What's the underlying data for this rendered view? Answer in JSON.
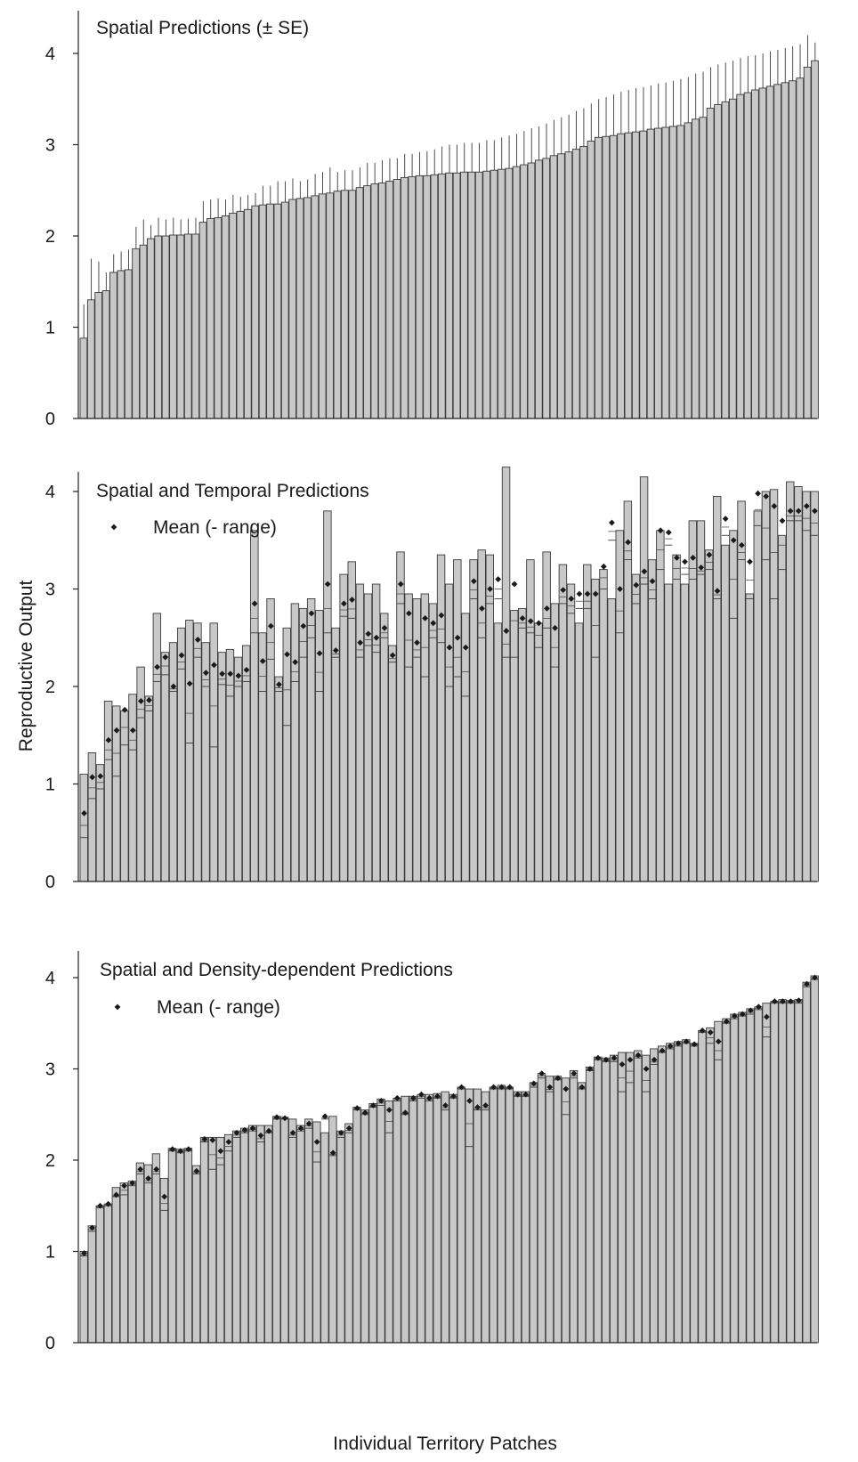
{
  "ylabel": "Reproductive Output",
  "xlabel": "Individual Territory Patches",
  "colors": {
    "bar_fill": "#c8c8c8",
    "bar_stroke": "#3a3a3a",
    "axis": "#222222",
    "marker": "#1a1a1a"
  },
  "chart_data": [
    {
      "type": "bar",
      "title": "Spatial Predictions (± SE)",
      "legend": null,
      "ylim": [
        0,
        4.3
      ],
      "yticks": [
        0,
        1,
        2,
        3,
        4
      ],
      "values": [
        0.88,
        1.3,
        1.38,
        1.4,
        1.6,
        1.62,
        1.63,
        1.86,
        1.9,
        1.97,
        2.0,
        2.0,
        2.01,
        2.01,
        2.02,
        2.02,
        2.15,
        2.19,
        2.2,
        2.22,
        2.25,
        2.27,
        2.29,
        2.33,
        2.34,
        2.35,
        2.35,
        2.37,
        2.4,
        2.41,
        2.42,
        2.44,
        2.46,
        2.47,
        2.49,
        2.5,
        2.5,
        2.53,
        2.55,
        2.57,
        2.58,
        2.6,
        2.62,
        2.64,
        2.65,
        2.66,
        2.66,
        2.67,
        2.68,
        2.69,
        2.69,
        2.7,
        2.7,
        2.7,
        2.71,
        2.72,
        2.73,
        2.74,
        2.76,
        2.78,
        2.8,
        2.83,
        2.85,
        2.88,
        2.9,
        2.92,
        2.95,
        2.98,
        3.04,
        3.08,
        3.09,
        3.1,
        3.12,
        3.13,
        3.14,
        3.15,
        3.17,
        3.18,
        3.19,
        3.2,
        3.21,
        3.24,
        3.28,
        3.3,
        3.4,
        3.44,
        3.47,
        3.5,
        3.55,
        3.57,
        3.6,
        3.62,
        3.64,
        3.66,
        3.68,
        3.7,
        3.73,
        3.85,
        3.92
      ],
      "upper": [
        1.25,
        1.75,
        1.72,
        1.6,
        1.8,
        1.83,
        1.85,
        2.1,
        2.18,
        2.12,
        2.2,
        2.18,
        2.2,
        2.18,
        2.19,
        2.2,
        2.38,
        2.4,
        2.41,
        2.4,
        2.45,
        2.43,
        2.45,
        2.47,
        2.55,
        2.55,
        2.6,
        2.6,
        2.63,
        2.6,
        2.62,
        2.68,
        2.7,
        2.75,
        2.7,
        2.72,
        2.72,
        2.75,
        2.8,
        2.8,
        2.83,
        2.85,
        2.85,
        2.9,
        2.9,
        2.92,
        2.93,
        2.95,
        2.98,
        3.0,
        3.0,
        3.02,
        3.02,
        3.02,
        3.05,
        3.05,
        3.08,
        3.1,
        3.12,
        3.15,
        3.18,
        3.2,
        3.23,
        3.27,
        3.3,
        3.33,
        3.37,
        3.4,
        3.45,
        3.5,
        3.52,
        3.55,
        3.58,
        3.6,
        3.62,
        3.63,
        3.65,
        3.67,
        3.68,
        3.7,
        3.72,
        3.74,
        3.78,
        3.8,
        3.85,
        3.88,
        3.9,
        3.92,
        3.95,
        3.97,
        3.98,
        4.0,
        4.02,
        4.04,
        4.06,
        4.08,
        4.1,
        4.2,
        4.12
      ]
    },
    {
      "type": "bar",
      "title": "Spatial and Temporal Predictions",
      "legend": "Mean (- range)",
      "ylim": [
        0,
        4.3
      ],
      "yticks": [
        0,
        1,
        2,
        3,
        4
      ],
      "values": [
        1.1,
        1.32,
        1.2,
        1.85,
        1.8,
        1.75,
        1.92,
        2.2,
        1.9,
        2.75,
        2.35,
        2.45,
        2.6,
        2.68,
        2.65,
        2.45,
        2.65,
        2.35,
        2.38,
        2.3,
        2.42,
        3.6,
        2.55,
        2.9,
        2.1,
        2.6,
        2.85,
        2.8,
        2.9,
        2.78,
        3.8,
        2.6,
        3.15,
        3.28,
        3.05,
        2.95,
        3.05,
        2.75,
        2.42,
        3.38,
        2.95,
        2.9,
        2.95,
        2.85,
        3.35,
        3.05,
        3.3,
        2.75,
        3.3,
        3.4,
        3.35,
        2.65,
        4.25,
        2.78,
        2.8,
        3.3,
        2.65,
        3.38,
        2.85,
        3.25,
        3.05,
        2.65,
        3.25,
        3.1,
        3.2,
        2.9,
        3.6,
        3.9,
        3.15,
        4.15,
        3.3,
        3.6,
        3.05,
        3.35,
        3.05,
        3.7,
        3.7,
        3.4,
        3.95,
        3.45,
        3.6,
        3.9,
        2.95,
        3.8,
        4.0,
        4.02,
        3.55,
        4.1,
        4.05,
        4.0,
        4.0
      ],
      "means": [
        0.7,
        1.07,
        1.08,
        1.45,
        1.55,
        1.76,
        1.55,
        1.85,
        1.86,
        2.2,
        2.3,
        2.0,
        2.32,
        2.03,
        2.48,
        2.14,
        2.22,
        2.13,
        2.13,
        2.11,
        2.17,
        2.85,
        2.26,
        2.62,
        2.02,
        2.33,
        2.25,
        2.62,
        2.75,
        2.34,
        3.05,
        2.37,
        2.85,
        2.89,
        2.45,
        2.54,
        2.5,
        2.6,
        2.32,
        3.05,
        2.75,
        2.45,
        2.7,
        2.65,
        2.73,
        2.4,
        2.5,
        2.4,
        3.08,
        2.8,
        3.0,
        3.1,
        2.57,
        3.05,
        2.7,
        2.67,
        2.65,
        2.8,
        2.6,
        2.99,
        2.9,
        2.95,
        2.95,
        2.95,
        3.23,
        3.68,
        3.0,
        3.48,
        3.04,
        3.18,
        3.08,
        3.6,
        3.58,
        3.32,
        3.28,
        3.32,
        3.22,
        3.35,
        2.98,
        3.72,
        3.5,
        3.45,
        3.28,
        3.98,
        3.95,
        3.85,
        3.7,
        3.8,
        3.8,
        3.85,
        3.8
      ],
      "mins": [
        0.45,
        0.85,
        0.95,
        1.25,
        1.08,
        1.4,
        1.35,
        1.68,
        1.75,
        2.05,
        2.12,
        1.95,
        2.18,
        1.42,
        2.3,
        2.0,
        1.38,
        2.02,
        1.9,
        2.0,
        2.05,
        2.55,
        1.95,
        2.28,
        1.95,
        1.6,
        2.05,
        2.3,
        2.5,
        1.95,
        2.55,
        2.3,
        2.72,
        2.7,
        2.3,
        2.42,
        2.35,
        2.5,
        2.25,
        2.85,
        2.2,
        2.3,
        2.1,
        2.5,
        2.45,
        2.0,
        2.1,
        1.9,
        2.9,
        2.5,
        2.85,
        2.9,
        2.3,
        2.3,
        2.6,
        2.55,
        2.4,
        2.6,
        2.2,
        2.85,
        2.75,
        2.8,
        2.8,
        2.3,
        3.0,
        3.5,
        2.55,
        3.3,
        2.85,
        3.05,
        2.9,
        3.2,
        3.45,
        3.1,
        3.15,
        3.1,
        3.15,
        3.2,
        2.9,
        3.55,
        2.7,
        3.3,
        2.9,
        3.65,
        3.3,
        2.9,
        3.2,
        3.7,
        3.7,
        3.6,
        3.55
      ]
    },
    {
      "type": "bar",
      "title": "Spatial and Density-dependent Predictions",
      "legend": "Mean (- range)",
      "ylim": [
        0,
        4.3
      ],
      "yticks": [
        0,
        1,
        2,
        3,
        4
      ],
      "values": [
        1.0,
        1.28,
        1.5,
        1.52,
        1.7,
        1.75,
        1.77,
        1.97,
        1.95,
        2.07,
        1.8,
        2.13,
        2.12,
        2.13,
        1.94,
        2.25,
        2.25,
        2.25,
        2.28,
        2.32,
        2.35,
        2.38,
        2.38,
        2.38,
        2.48,
        2.47,
        2.45,
        2.38,
        2.45,
        2.42,
        2.3,
        2.48,
        2.32,
        2.4,
        2.58,
        2.55,
        2.62,
        2.67,
        2.65,
        2.68,
        2.7,
        2.7,
        2.72,
        2.72,
        2.73,
        2.75,
        2.72,
        2.8,
        2.78,
        2.78,
        2.75,
        2.8,
        2.82,
        2.8,
        2.75,
        2.75,
        2.85,
        2.95,
        2.92,
        2.92,
        2.9,
        2.98,
        2.85,
        3.02,
        3.13,
        3.12,
        3.15,
        3.18,
        3.18,
        3.2,
        3.15,
        3.22,
        3.25,
        3.28,
        3.3,
        3.32,
        3.28,
        3.42,
        3.45,
        3.52,
        3.55,
        3.6,
        3.62,
        3.66,
        3.68,
        3.72,
        3.74,
        3.76,
        3.75,
        3.76,
        3.95,
        4.02
      ],
      "means": [
        0.98,
        1.26,
        1.5,
        1.52,
        1.62,
        1.72,
        1.75,
        1.9,
        1.8,
        1.9,
        1.6,
        2.12,
        2.1,
        2.12,
        1.88,
        2.23,
        2.22,
        2.1,
        2.2,
        2.3,
        2.33,
        2.35,
        2.27,
        2.32,
        2.47,
        2.46,
        2.3,
        2.35,
        2.4,
        2.2,
        2.48,
        2.08,
        2.3,
        2.35,
        2.57,
        2.52,
        2.6,
        2.65,
        2.55,
        2.68,
        2.52,
        2.68,
        2.72,
        2.68,
        2.7,
        2.6,
        2.7,
        2.8,
        2.65,
        2.58,
        2.6,
        2.8,
        2.8,
        2.8,
        2.72,
        2.72,
        2.84,
        2.95,
        2.8,
        2.9,
        2.78,
        2.95,
        2.8,
        3.0,
        3.12,
        3.1,
        3.12,
        3.05,
        3.1,
        3.15,
        3.0,
        3.1,
        3.2,
        3.25,
        3.28,
        3.3,
        3.27,
        3.42,
        3.4,
        3.3,
        3.52,
        3.58,
        3.6,
        3.64,
        3.68,
        3.57,
        3.74,
        3.74,
        3.74,
        3.75,
        3.93,
        4.0
      ],
      "mins": [
        0.95,
        1.22,
        1.48,
        1.5,
        1.6,
        1.62,
        1.72,
        1.85,
        1.75,
        1.85,
        1.45,
        2.1,
        2.08,
        2.1,
        1.85,
        2.2,
        1.9,
        1.95,
        2.1,
        2.25,
        2.3,
        2.32,
        2.2,
        2.3,
        2.45,
        2.45,
        2.25,
        2.32,
        2.35,
        1.98,
        2.45,
        2.05,
        2.25,
        2.3,
        2.55,
        2.5,
        2.58,
        2.6,
        2.3,
        2.65,
        2.5,
        2.65,
        2.68,
        2.65,
        2.68,
        2.55,
        2.68,
        2.78,
        2.15,
        2.55,
        2.55,
        2.78,
        2.78,
        2.78,
        2.7,
        2.7,
        2.8,
        2.9,
        2.75,
        2.88,
        2.5,
        2.9,
        2.78,
        2.98,
        3.1,
        3.08,
        3.08,
        2.75,
        2.85,
        3.12,
        2.75,
        3.05,
        3.18,
        3.22,
        3.25,
        3.28,
        3.25,
        3.4,
        3.28,
        3.1,
        3.5,
        3.55,
        3.58,
        3.6,
        3.65,
        3.35,
        3.72,
        3.72,
        3.72,
        3.72,
        3.9,
        3.98
      ]
    }
  ]
}
